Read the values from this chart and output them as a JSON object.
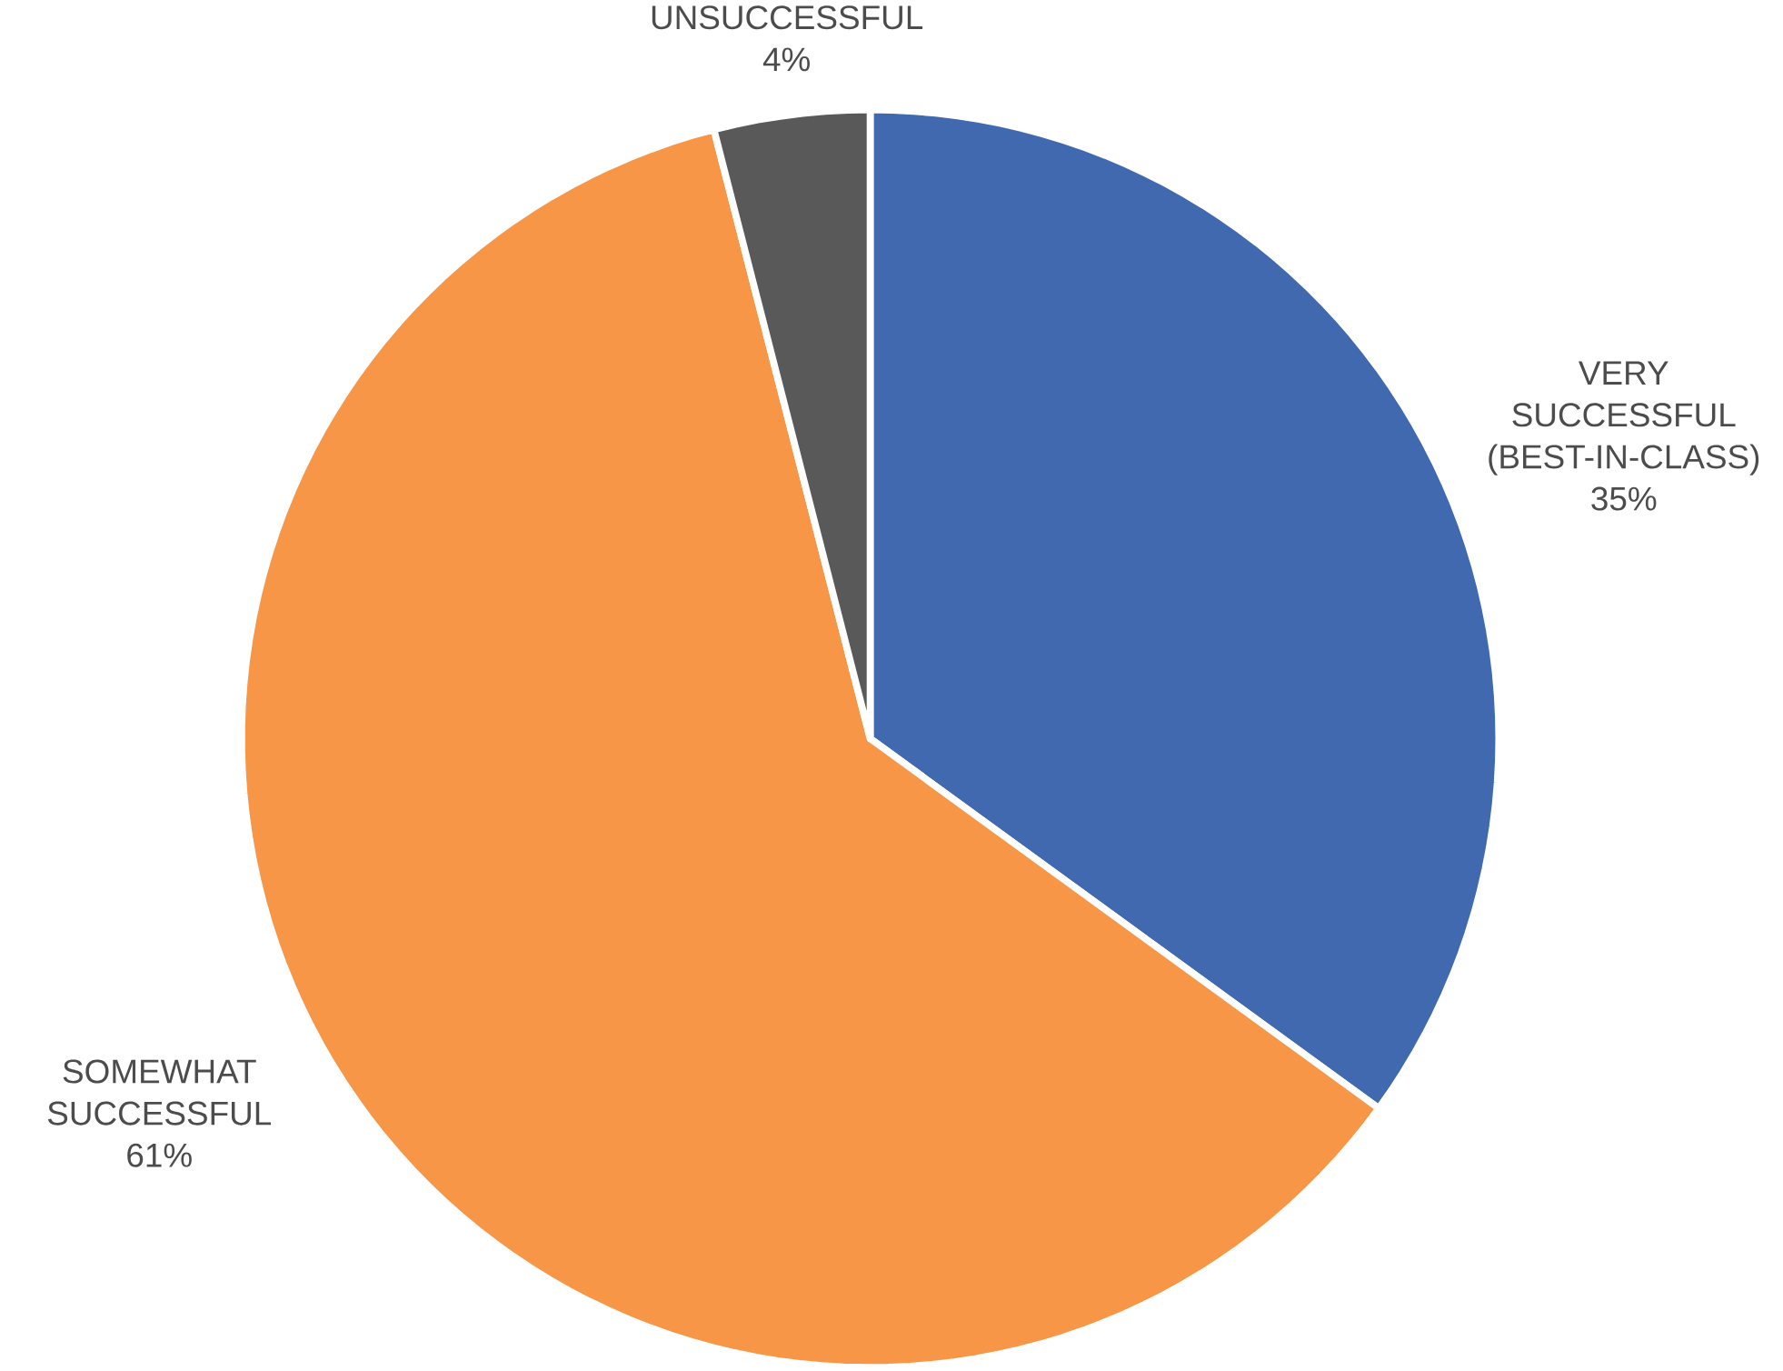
{
  "chart_data": {
    "type": "pie",
    "categories": [
      "VERY SUCCESSFUL (BEST-IN-CLASS)",
      "SOMEWHAT SUCCESSFUL",
      "UNSUCCESSFUL"
    ],
    "values": [
      35,
      61,
      4
    ],
    "value_labels": [
      "35%",
      "61%",
      "4%"
    ],
    "colors": [
      "#4169b0",
      "#f79646",
      "#595959"
    ]
  }
}
